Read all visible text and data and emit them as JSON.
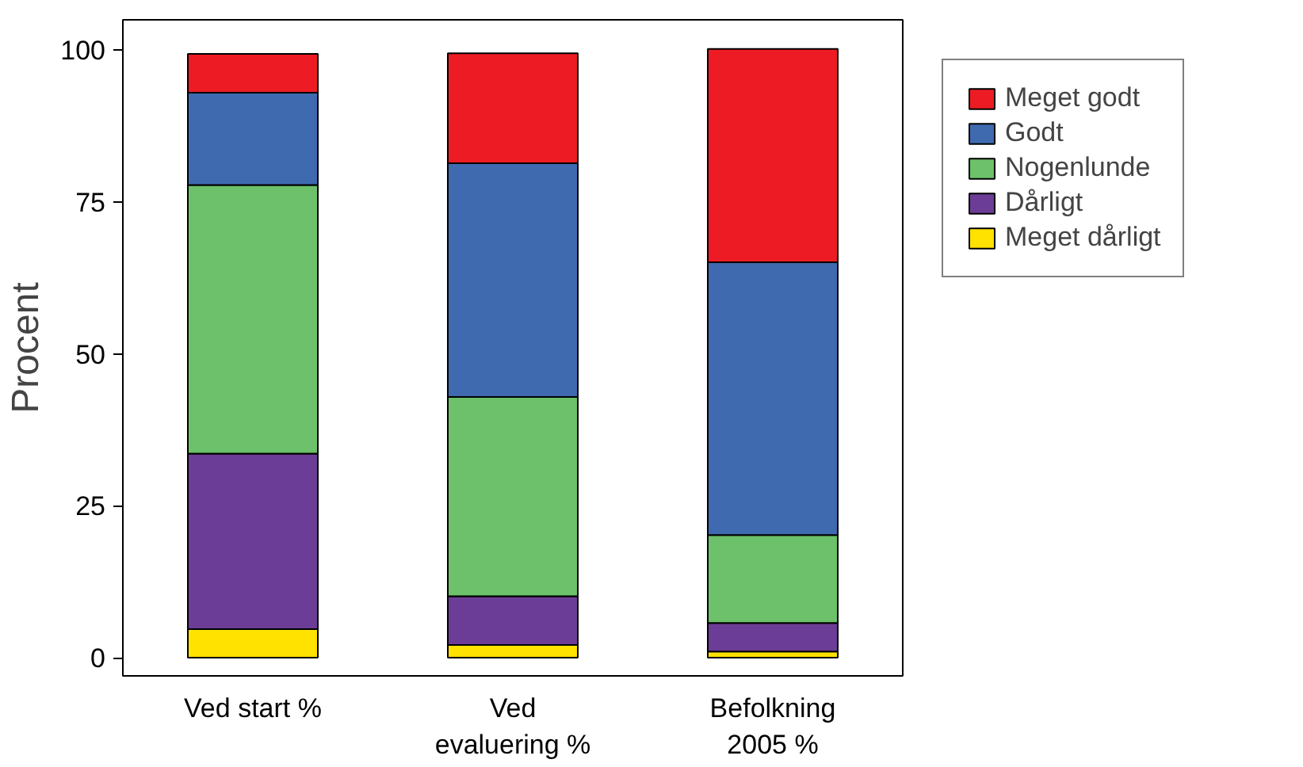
{
  "chart_data": {
    "type": "bar",
    "stacked": true,
    "ylabel": "Procent",
    "categories": [
      "Ved start %",
      "Ved evaluering %",
      "Befolkning 2005 %"
    ],
    "series": [
      {
        "name": "Meget dårligt",
        "color": "#ffe200",
        "values": [
          4.7,
          2.1,
          1.0
        ]
      },
      {
        "name": "Dårligt",
        "color": "#6c3d96",
        "values": [
          28.9,
          8.0,
          4.7
        ]
      },
      {
        "name": "Nogenlunde",
        "color": "#6cc16a",
        "values": [
          44.2,
          32.8,
          14.5
        ]
      },
      {
        "name": "Godt",
        "color": "#3f6ab0",
        "values": [
          15.2,
          38.5,
          44.9
        ]
      },
      {
        "name": "Meget godt",
        "color": "#ed1c24",
        "values": [
          6.4,
          18.1,
          35.1
        ]
      }
    ],
    "ylim": [
      -3,
      105
    ],
    "yticks": [
      0,
      25,
      50,
      75,
      100
    ],
    "grid": false,
    "legend": "top right"
  }
}
